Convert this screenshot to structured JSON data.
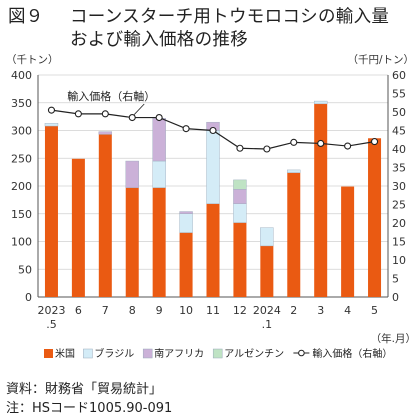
{
  "figure": {
    "number": "図９",
    "title_line1": "コーンスターチ用トウモロコシの輸入量",
    "title_line2": "および輸入価格の推移"
  },
  "notes": {
    "source": "資料：財務省「貿易統計」",
    "note": "注：HSコード1005.90-091"
  },
  "chart_data": {
    "type": "bar",
    "stacked": true,
    "left_unit": "（千トン）",
    "right_unit": "（千円/トン）",
    "x_unit": "（年.月）",
    "categories": [
      "2023.5",
      "6",
      "7",
      "8",
      "9",
      "10",
      "11",
      "12",
      "2024.1",
      "2",
      "3",
      "4",
      "5"
    ],
    "category_labels": [
      [
        "2023",
        ".5"
      ],
      [
        "6"
      ],
      [
        "7"
      ],
      [
        "8"
      ],
      [
        "9"
      ],
      [
        "10"
      ],
      [
        "11"
      ],
      [
        "12"
      ],
      [
        "2024",
        ".1"
      ],
      [
        "2"
      ],
      [
        "3"
      ],
      [
        "4"
      ],
      [
        "5"
      ]
    ],
    "ylim": [
      0,
      400
    ],
    "y_ticks": [
      0,
      50,
      100,
      150,
      200,
      250,
      300,
      350,
      400
    ],
    "y2lim": [
      0,
      60
    ],
    "y2_ticks": [
      0,
      5,
      10,
      15,
      20,
      25,
      30,
      35,
      40,
      45,
      50,
      55,
      60
    ],
    "series": [
      {
        "name": "米国",
        "key": "us",
        "color": "#ea5a12",
        "values": [
          308,
          249,
          293,
          197,
          197,
          116,
          168,
          134,
          92,
          224,
          348,
          199,
          286
        ]
      },
      {
        "name": "ブラジル",
        "key": "br",
        "color": "#d4ecf7",
        "values": [
          5,
          0,
          0,
          0,
          48,
          34,
          132,
          34,
          33,
          5,
          5,
          0,
          0
        ]
      },
      {
        "name": "南アフリカ",
        "key": "za",
        "color": "#cbb1d8",
        "values": [
          0,
          0,
          5,
          48,
          77,
          4,
          15,
          26,
          0,
          0,
          0,
          0,
          0
        ]
      },
      {
        "name": "アルゼンチン",
        "key": "ar",
        "color": "#bfe3c4",
        "values": [
          0,
          0,
          0,
          0,
          0,
          0,
          0,
          17,
          0,
          0,
          0,
          0,
          0
        ]
      }
    ],
    "line": {
      "name": "輸入価格（右軸）",
      "values": [
        50.5,
        49.5,
        49.5,
        48.5,
        48.5,
        45.5,
        45.0,
        40.2,
        40.0,
        41.8,
        41.5,
        40.8,
        42.0
      ]
    },
    "line_label": "輸入価格（右軸）"
  }
}
